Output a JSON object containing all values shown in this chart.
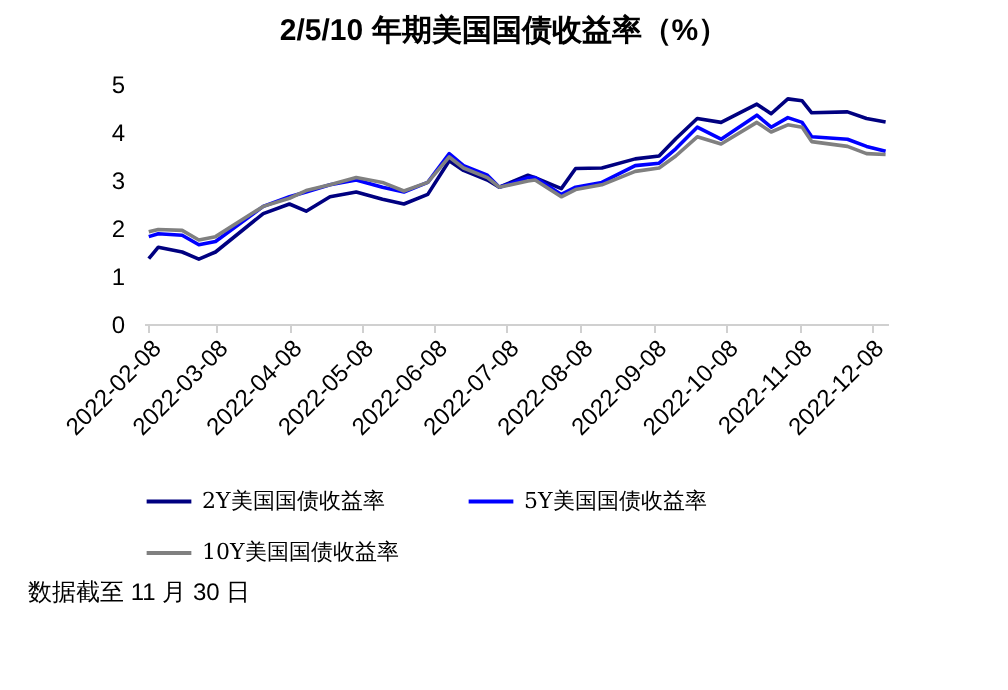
{
  "chart_data": {
    "type": "line",
    "title": "2/5/10 年期美国国债收益率（%）",
    "annotations": [
      "数据截至 11 月 30 日"
    ],
    "x": [
      "2022-02-08",
      "2022-02-12",
      "2022-02-22",
      "2022-03-01",
      "2022-03-08",
      "2022-03-28",
      "2022-04-08",
      "2022-04-15",
      "2022-04-25",
      "2022-05-06",
      "2022-05-17",
      "2022-05-26",
      "2022-06-05",
      "2022-06-14",
      "2022-06-20",
      "2022-06-30",
      "2022-07-05",
      "2022-07-17",
      "2022-07-20",
      "2022-07-31",
      "2022-08-06",
      "2022-08-17",
      "2022-08-31",
      "2022-09-10",
      "2022-09-17",
      "2022-09-26",
      "2022-10-06",
      "2022-10-21",
      "2022-10-27",
      "2022-11-03",
      "2022-11-09",
      "2022-11-13",
      "2022-11-28",
      "2022-12-06",
      "2022-12-14"
    ],
    "series": [
      {
        "name": "2Y美国国债收益率",
        "color": "#000080",
        "values": [
          1.36,
          1.6,
          1.5,
          1.35,
          1.5,
          2.3,
          2.5,
          2.35,
          2.65,
          2.75,
          2.6,
          2.5,
          2.7,
          3.4,
          3.2,
          3.0,
          2.85,
          3.1,
          3.05,
          2.82,
          3.24,
          3.25,
          3.44,
          3.5,
          3.86,
          4.28,
          4.2,
          4.58,
          4.38,
          4.69,
          4.65,
          4.4,
          4.42,
          4.28,
          4.21
        ]
      },
      {
        "name": "5Y美国国债收益率",
        "color": "#0000ff",
        "values": [
          1.82,
          1.88,
          1.85,
          1.65,
          1.72,
          2.45,
          2.65,
          2.75,
          2.9,
          3.0,
          2.85,
          2.75,
          2.95,
          3.55,
          3.3,
          3.1,
          2.85,
          3.05,
          3.05,
          2.7,
          2.85,
          2.95,
          3.3,
          3.35,
          3.65,
          4.1,
          3.85,
          4.35,
          4.1,
          4.3,
          4.2,
          3.9,
          3.85,
          3.7,
          3.6
        ]
      },
      {
        "name": "10Y美国国债收益率",
        "color": "#808080",
        "values": [
          1.92,
          1.97,
          1.95,
          1.75,
          1.82,
          2.45,
          2.62,
          2.78,
          2.9,
          3.05,
          2.95,
          2.77,
          2.95,
          3.48,
          3.25,
          3.05,
          2.85,
          2.98,
          3.0,
          2.65,
          2.8,
          2.9,
          3.18,
          3.25,
          3.5,
          3.9,
          3.75,
          4.2,
          4.0,
          4.15,
          4.1,
          3.8,
          3.7,
          3.55,
          3.53
        ]
      }
    ],
    "ylim": [
      0,
      5
    ],
    "yticks": [
      0,
      1,
      2,
      3,
      4,
      5
    ],
    "xlim": [
      "2022-02-06",
      "2022-12-15"
    ],
    "xticks": [
      "2022-02-08",
      "2022-03-08",
      "2022-04-08",
      "2022-05-08",
      "2022-06-08",
      "2022-07-08",
      "2022-08-08",
      "2022-09-08",
      "2022-10-08",
      "2022-11-08",
      "2022-12-08"
    ],
    "legend": "bottom",
    "grid": false,
    "marker": "none",
    "line_style": "solid"
  }
}
